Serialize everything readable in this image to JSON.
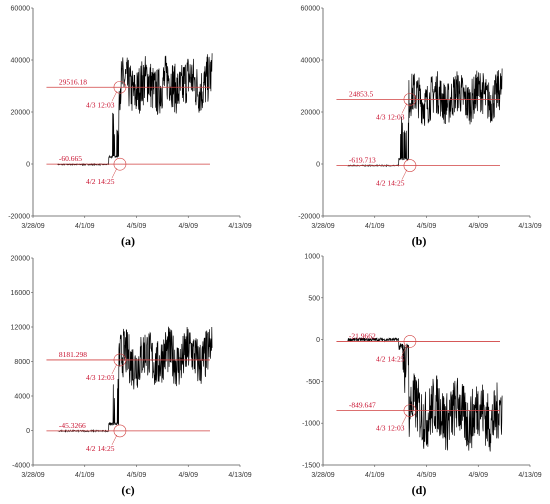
{
  "chart_data": [
    {
      "panel": "a",
      "caption": "(a)",
      "type": "line",
      "ylim": [
        -20000,
        60000
      ],
      "y_ticks": [
        "-20000",
        "0",
        "20000",
        "40000",
        "60000"
      ],
      "x_ticks": [
        "3/28/09",
        "4/1/09",
        "4/5/09",
        "4/9/09",
        "4/13/09"
      ],
      "grid": false,
      "series_color": "#000000",
      "reference_lines": [
        {
          "value": 29516.18,
          "label": "29516.18"
        },
        {
          "value": -60.665,
          "label": "-60.665"
        }
      ],
      "annotations": [
        {
          "label": "4/3 12:03",
          "at_y": 29516.18
        },
        {
          "label": "4/2 14:25",
          "at_y": -60.665
        }
      ],
      "signal": {
        "baseline_before": -200,
        "level_after": 29516,
        "amplitude_after": 8000,
        "noise_before": 400
      }
    },
    {
      "panel": "b",
      "caption": "(b)",
      "type": "line",
      "ylim": [
        -20000,
        60000
      ],
      "y_ticks": [
        "-20000",
        "0",
        "20000",
        "40000",
        "60000"
      ],
      "x_ticks": [
        "3/28/09",
        "4/1/09",
        "4/5/09",
        "4/9/09",
        "4/13/09"
      ],
      "grid": false,
      "series_color": "#000000",
      "reference_lines": [
        {
          "value": 24853.5,
          "label": "24853.5"
        },
        {
          "value": -619.713,
          "label": "-619.713"
        }
      ],
      "annotations": [
        {
          "label": "4/3 12:03",
          "at_y": 24853.5
        },
        {
          "label": "4/2 14:25",
          "at_y": -619.713
        }
      ],
      "signal": {
        "baseline_before": -600,
        "level_after": 24853,
        "amplitude_after": 7000,
        "noise_before": 400
      }
    },
    {
      "panel": "c",
      "caption": "(c)",
      "type": "line",
      "ylim": [
        -4000,
        20000
      ],
      "y_ticks": [
        "-4000",
        "0",
        "4000",
        "8000",
        "12000",
        "16000",
        "20000"
      ],
      "x_ticks": [
        "3/28/09",
        "4/1/09",
        "4/5/09",
        "4/9/09",
        "4/13/09"
      ],
      "grid": false,
      "series_color": "#000000",
      "reference_lines": [
        {
          "value": 8181.298,
          "label": "8181.298"
        },
        {
          "value": -45.3266,
          "label": "-45.3266"
        }
      ],
      "annotations": [
        {
          "label": "4/3 12:03",
          "at_y": 8181.298
        },
        {
          "label": "4/2 14:25",
          "at_y": -45.3266
        }
      ],
      "signal": {
        "baseline_before": -50,
        "level_after": 8181,
        "amplitude_after": 2400,
        "noise_before": 150
      }
    },
    {
      "panel": "d",
      "caption": "(d)",
      "type": "line",
      "ylim": [
        -1500,
        1000
      ],
      "y_ticks": [
        "-1500",
        "-1000",
        "-500",
        "0",
        "500",
        "1000"
      ],
      "x_ticks": [
        "3/28/09",
        "4/1/09",
        "4/5/09",
        "4/9/09",
        "4/13/09"
      ],
      "grid": false,
      "series_color": "#000000",
      "reference_lines": [
        {
          "value": -21.9662,
          "label": "-21.9662"
        },
        {
          "value": -849.647,
          "label": "-849.647"
        }
      ],
      "annotations": [
        {
          "label": "4/2 14:25",
          "at_y": -21.9662
        },
        {
          "label": "4/3 12:03",
          "at_y": -849.647
        }
      ],
      "signal": {
        "baseline_before": 0,
        "level_after": -850,
        "amplitude_after": 300,
        "noise_before": 40
      }
    }
  ],
  "colors": {
    "series": "#000000",
    "reference_line": "#d04040",
    "annotation_text": "#c8102e",
    "axis": "#555555"
  }
}
